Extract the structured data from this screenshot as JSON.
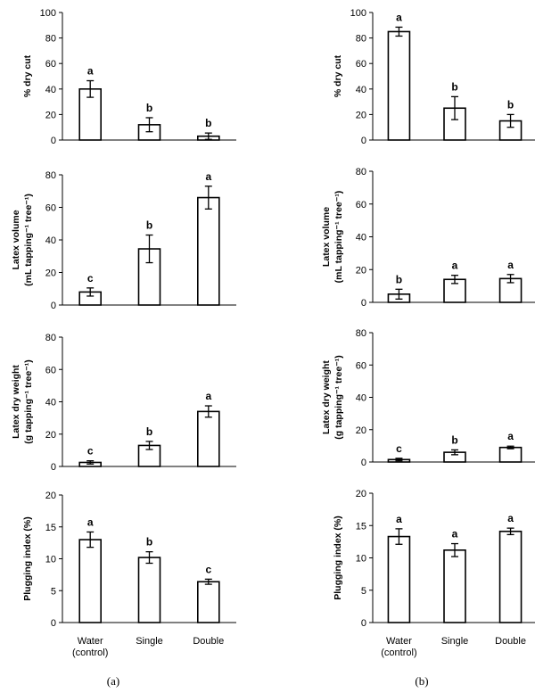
{
  "panel_labels": [
    "(a)",
    "(b)"
  ],
  "chart_data": [
    {
      "type": "bar",
      "panel": "(a)",
      "row": 0,
      "categories": [
        "Water (control)",
        "Single",
        "Double"
      ],
      "values": [
        40,
        12,
        3
      ],
      "errors": [
        6.5,
        5.5,
        2.5
      ],
      "letters": [
        "a",
        "b",
        "b"
      ],
      "ylabel_lines": [
        "% dry cut"
      ],
      "ylim": [
        0,
        100
      ],
      "yticks": [
        0,
        20,
        40,
        60,
        80,
        100
      ]
    },
    {
      "type": "bar",
      "panel": "(b)",
      "row": 0,
      "categories": [
        "Water (control)",
        "Single",
        "Double"
      ],
      "values": [
        85,
        25,
        15
      ],
      "errors": [
        3.5,
        9,
        5
      ],
      "letters": [
        "a",
        "b",
        "b"
      ],
      "ylabel_lines": [
        "% dry cut"
      ],
      "ylim": [
        0,
        100
      ],
      "yticks": [
        0,
        20,
        40,
        60,
        80,
        100
      ]
    },
    {
      "type": "bar",
      "panel": "(a)",
      "row": 1,
      "categories": [
        "Water (control)",
        "Single",
        "Double"
      ],
      "values": [
        8,
        34.5,
        66
      ],
      "errors": [
        2.5,
        8.5,
        7
      ],
      "letters": [
        "c",
        "b",
        "a"
      ],
      "ylabel_lines": [
        "Latex volume",
        "(mL tapping⁻¹ tree⁻¹)"
      ],
      "ylim": [
        0,
        80
      ],
      "yticks": [
        0,
        20,
        40,
        60,
        80
      ]
    },
    {
      "type": "bar",
      "panel": "(b)",
      "row": 1,
      "categories": [
        "Water (control)",
        "Single",
        "Double"
      ],
      "values": [
        5,
        14,
        14.5
      ],
      "errors": [
        3,
        2.5,
        2.5
      ],
      "letters": [
        "b",
        "a",
        "a"
      ],
      "ylabel_lines": [
        "Latex volume",
        "(mL tapping⁻¹ tree⁻¹)"
      ],
      "ylim": [
        0,
        80
      ],
      "yticks": [
        0,
        20,
        40,
        60,
        80
      ]
    },
    {
      "type": "bar",
      "panel": "(a)",
      "row": 2,
      "categories": [
        "Water (control)",
        "Single",
        "Double"
      ],
      "values": [
        2.5,
        13,
        34
      ],
      "errors": [
        1,
        2.5,
        3.5
      ],
      "letters": [
        "c",
        "b",
        "a"
      ],
      "ylabel_lines": [
        "Latex dry weight",
        "(g tapping⁻¹ tree⁻¹)"
      ],
      "ylim": [
        0,
        80
      ],
      "yticks": [
        0,
        20,
        40,
        60,
        80
      ]
    },
    {
      "type": "bar",
      "panel": "(b)",
      "row": 2,
      "categories": [
        "Water (control)",
        "Single",
        "Double"
      ],
      "values": [
        1.5,
        6,
        9
      ],
      "errors": [
        0.8,
        1.5,
        0.8
      ],
      "letters": [
        "c",
        "b",
        "a"
      ],
      "ylabel_lines": [
        "Latex dry weight",
        "(g tapping⁻¹ tree⁻¹)"
      ],
      "ylim": [
        0,
        80
      ],
      "yticks": [
        0,
        20,
        40,
        60,
        80
      ]
    },
    {
      "type": "bar",
      "panel": "(a)",
      "row": 3,
      "categories": [
        "Water (control)",
        "Single",
        "Double"
      ],
      "values": [
        13,
        10.2,
        6.4
      ],
      "errors": [
        1.2,
        0.9,
        0.4
      ],
      "letters": [
        "a",
        "b",
        "c"
      ],
      "ylabel_lines": [
        "Plugging index  (%)"
      ],
      "ylim": [
        0,
        20
      ],
      "yticks": [
        0,
        5,
        10,
        15,
        20
      ]
    },
    {
      "type": "bar",
      "panel": "(b)",
      "row": 3,
      "categories": [
        "Water (control)",
        "Single",
        "Double"
      ],
      "values": [
        13.3,
        11.2,
        14.1
      ],
      "errors": [
        1.2,
        1,
        0.5
      ],
      "letters": [
        "a",
        "a",
        "a"
      ],
      "ylabel_lines": [
        "Plugging index  (%)"
      ],
      "ylim": [
        0,
        20
      ],
      "yticks": [
        0,
        5,
        10,
        15,
        20
      ]
    }
  ]
}
